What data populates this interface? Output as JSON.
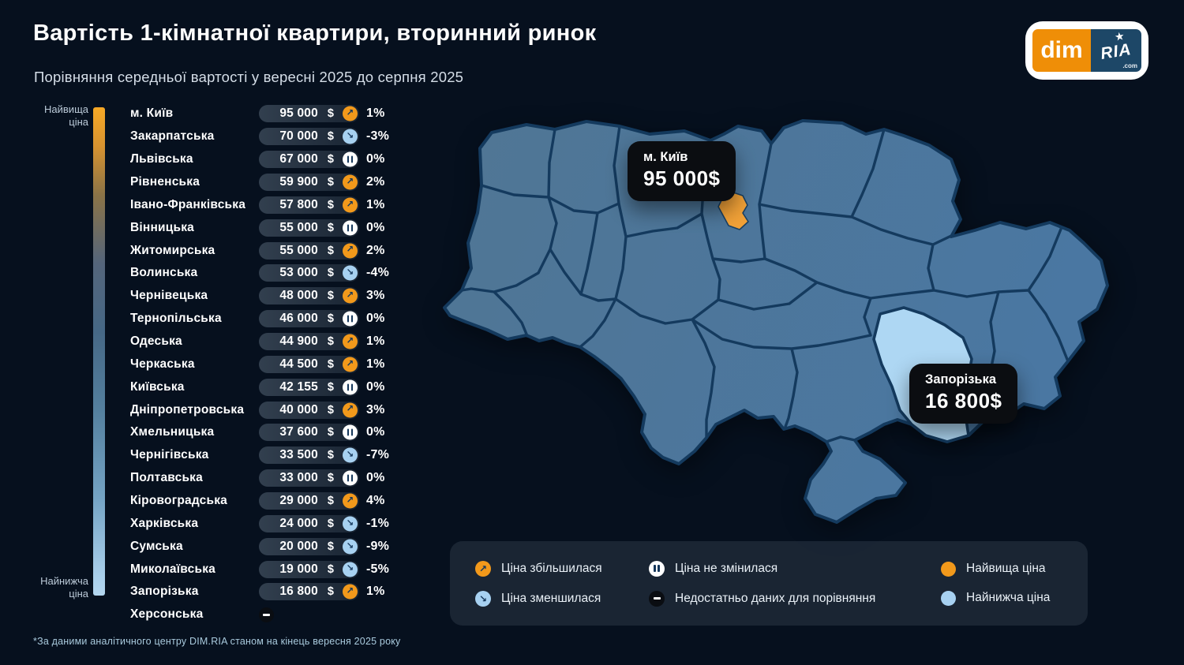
{
  "header": {
    "title": "Вартість 1-кімнатної квартири, вторинний ринок",
    "subtitle": "Порівняння середньої вартості у вересні 2025 до серпня 2025",
    "logo": {
      "dim": "dim",
      "ria": "RIA",
      "star": "★",
      "com": ".com"
    }
  },
  "scale": {
    "high_label": "Найвища ціна",
    "low_label": "Найнижча ціна"
  },
  "currency": "$",
  "chart_data": {
    "type": "table",
    "title": "Вартість 1-кімнатної квартири, вторинний ринок",
    "subtitle": "Порівняння середньої вартості у вересні 2025 до серпня 2025",
    "rows": [
      {
        "region": "м. Київ",
        "price": 95000,
        "price_label": "95 000",
        "trend": "up",
        "change_label": "1%"
      },
      {
        "region": "Закарпатська",
        "price": 70000,
        "price_label": "70 000",
        "trend": "down",
        "change_label": "-3%"
      },
      {
        "region": "Львівська",
        "price": 67000,
        "price_label": "67 000",
        "trend": "flat",
        "change_label": "0%"
      },
      {
        "region": "Рівненська",
        "price": 59900,
        "price_label": "59 900",
        "trend": "up",
        "change_label": "2%"
      },
      {
        "region": "Івано-Франківська",
        "price": 57800,
        "price_label": "57 800",
        "trend": "up",
        "change_label": "1%"
      },
      {
        "region": "Вінницька",
        "price": 55000,
        "price_label": "55 000",
        "trend": "flat",
        "change_label": "0%"
      },
      {
        "region": "Житомирська",
        "price": 55000,
        "price_label": "55 000",
        "trend": "up",
        "change_label": "2%"
      },
      {
        "region": "Волинська",
        "price": 53000,
        "price_label": "53 000",
        "trend": "down",
        "change_label": "-4%"
      },
      {
        "region": "Чернівецька",
        "price": 48000,
        "price_label": "48 000",
        "trend": "up",
        "change_label": "3%"
      },
      {
        "region": "Тернопільська",
        "price": 46000,
        "price_label": "46 000",
        "trend": "flat",
        "change_label": "0%"
      },
      {
        "region": "Одеська",
        "price": 44900,
        "price_label": "44 900",
        "trend": "up",
        "change_label": "1%"
      },
      {
        "region": "Черкаська",
        "price": 44500,
        "price_label": "44 500",
        "trend": "up",
        "change_label": "1%"
      },
      {
        "region": "Київська",
        "price": 42155,
        "price_label": "42 155",
        "trend": "flat",
        "change_label": "0%"
      },
      {
        "region": "Дніпропетровська",
        "price": 40000,
        "price_label": "40 000",
        "trend": "up",
        "change_label": "3%"
      },
      {
        "region": "Хмельницька",
        "price": 37600,
        "price_label": "37 600",
        "trend": "flat",
        "change_label": "0%"
      },
      {
        "region": "Чернігівська",
        "price": 33500,
        "price_label": "33 500",
        "trend": "down",
        "change_label": "-7%"
      },
      {
        "region": "Полтавська",
        "price": 33000,
        "price_label": "33 000",
        "trend": "flat",
        "change_label": "0%"
      },
      {
        "region": "Кіровоградська",
        "price": 29000,
        "price_label": "29 000",
        "trend": "up",
        "change_label": "4%"
      },
      {
        "region": "Харківська",
        "price": 24000,
        "price_label": "24 000",
        "trend": "down",
        "change_label": "-1%"
      },
      {
        "region": "Сумська",
        "price": 20000,
        "price_label": "20 000",
        "trend": "down",
        "change_label": "-9%"
      },
      {
        "region": "Миколаївська",
        "price": 19000,
        "price_label": "19 000",
        "trend": "down",
        "change_label": "-5%"
      },
      {
        "region": "Запорізька",
        "price": 16800,
        "price_label": "16 800",
        "trend": "up",
        "change_label": "1%"
      },
      {
        "region": "Херсонська",
        "price": null,
        "price_label": "",
        "trend": "none",
        "change_label": ""
      }
    ]
  },
  "map": {
    "tooltips": [
      {
        "region": "м. Київ",
        "price": "95 000$"
      },
      {
        "region": "Запорізька",
        "price": "16 800$"
      }
    ]
  },
  "legend": {
    "items": [
      {
        "icon": "up",
        "label": "Ціна збільшилася"
      },
      {
        "icon": "down",
        "label": "Ціна зменшилася"
      },
      {
        "icon": "flat",
        "label": "Ціна не змінилася"
      },
      {
        "icon": "none",
        "label": "Недостатньо даних для порівняння"
      },
      {
        "icon": "dot-high",
        "label": "Найвища ціна"
      },
      {
        "icon": "dot-low",
        "label": "Найнижча ціна"
      }
    ]
  },
  "footnote": "*За даними аналітичного центру DIM.RIA станом на кінець вересня 2025 року",
  "colors": {
    "trend_up": "#f2991b",
    "trend_down": "#a7d1f1",
    "trend_flat": "#ffffff",
    "trend_none": "#0a0d12",
    "highest": "#f2991b",
    "lowest": "#a7d1f1",
    "map_region": "#4d7498",
    "map_border": "#143a5e",
    "kyiv_highlight": "#f2a238",
    "zaporizka_highlight": "#aed7f3"
  }
}
